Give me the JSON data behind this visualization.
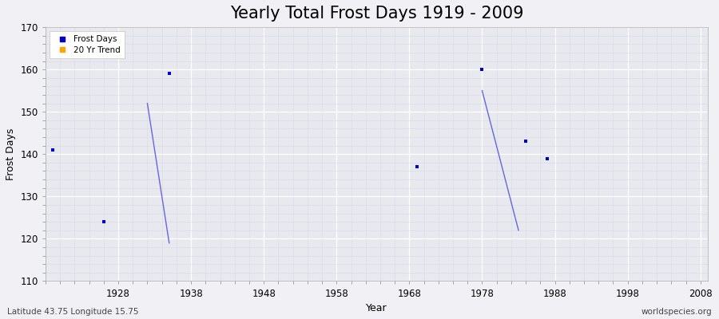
{
  "title": "Yearly Total Frost Days 1919 - 2009",
  "xlabel": "Year",
  "ylabel": "Frost Days",
  "subtitle_left": "Latitude 43.75 Longitude 15.75",
  "subtitle_right": "worldspecies.org",
  "xlim": [
    1918,
    2009
  ],
  "ylim": [
    110,
    170
  ],
  "yticks": [
    110,
    120,
    130,
    140,
    150,
    160,
    170
  ],
  "xticks": [
    1928,
    1938,
    1948,
    1958,
    1968,
    1978,
    1988,
    1998,
    2008
  ],
  "scatter_years": [
    1919,
    1926,
    1935,
    1969,
    1978,
    1984,
    1987
  ],
  "scatter_values": [
    141,
    124,
    159,
    137,
    160,
    143,
    139
  ],
  "scatter_color": "#0000cc",
  "scatter_marker": "s",
  "scatter_size": 12,
  "trend_segments": [
    {
      "x": [
        1932,
        1935
      ],
      "y": [
        152,
        119
      ]
    },
    {
      "x": [
        1978,
        1983
      ],
      "y": [
        155,
        122
      ]
    }
  ],
  "trend_color": "#6666dd",
  "trend_linewidth": 1.0,
  "legend_labels": [
    "Frost Days",
    "20 Yr Trend"
  ],
  "legend_colors": [
    "#0000cc",
    "#ffa500"
  ],
  "bg_color": "#f0f0f5",
  "plot_bg_color": "#e8e8ef",
  "grid_major_color": "#ffffff",
  "grid_minor_color": "#d8d8e8",
  "title_fontsize": 15,
  "axis_fontsize": 9,
  "tick_fontsize": 8.5,
  "subtitle_fontsize": 7.5
}
